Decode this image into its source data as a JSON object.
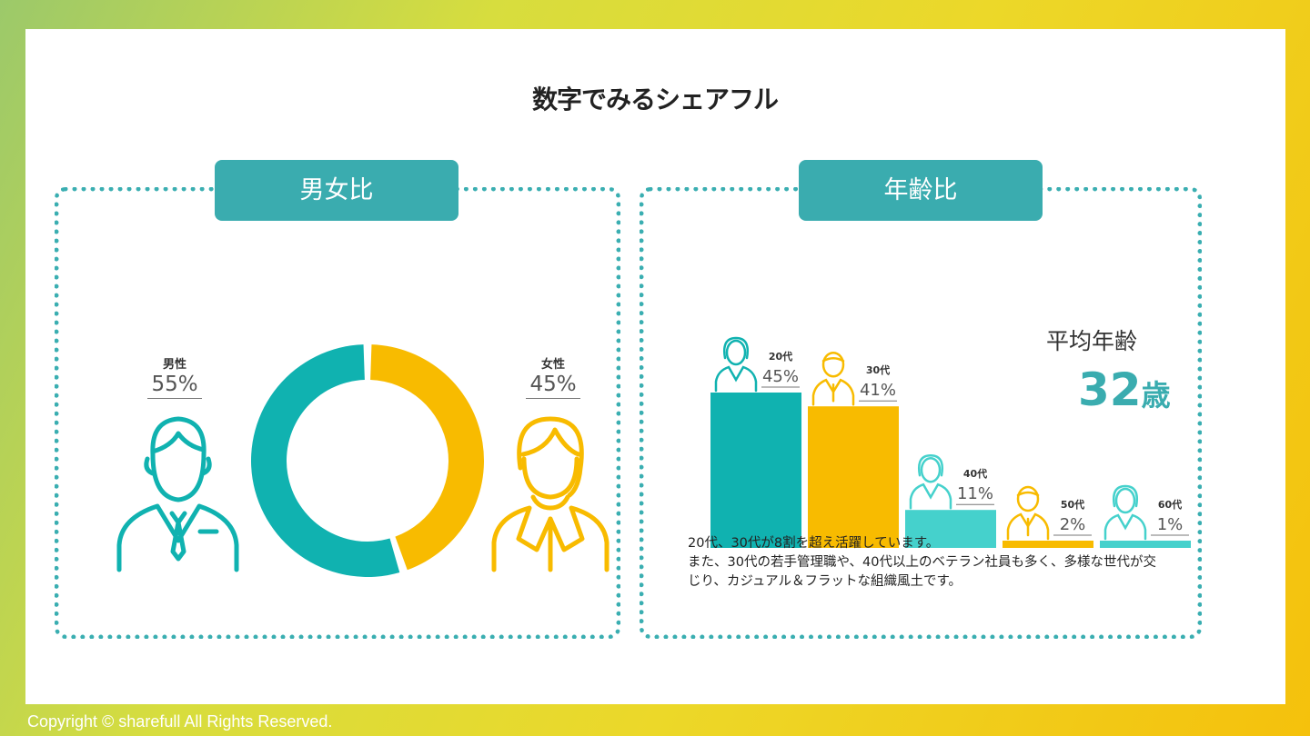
{
  "page": {
    "title": "数字でみるシェアフル",
    "copyright": "Copyright © sharefull All Rights Reserved."
  },
  "gender_panel": {
    "heading": "男女比",
    "male": {
      "label": "男性",
      "percent": "55%"
    },
    "female": {
      "label": "女性",
      "percent": "45%"
    }
  },
  "age_panel": {
    "heading": "年齢比",
    "average_label": "平均年齢",
    "average_value": "32",
    "average_unit": "歳",
    "description": "20代、30代が8割を超え活躍しています。\nまた、30代の若手管理職や、40代以上のベテラン社員も多く、多様な世代が交じり、カジュアル＆フラットな組織風土です。"
  },
  "colors": {
    "teal": "#10b2b0",
    "yellow": "#f8bb00",
    "light_teal": "#45d1cc",
    "accent": "#3aacaf"
  },
  "chart_data": [
    {
      "type": "pie",
      "categories": [
        "男性",
        "女性"
      ],
      "values": [
        55,
        45
      ],
      "colors": [
        "#10b2b0",
        "#f8bb00"
      ],
      "style": "donut"
    },
    {
      "type": "bar",
      "categories": [
        "20代",
        "30代",
        "40代",
        "50代",
        "60代"
      ],
      "values": [
        45,
        41,
        11,
        2,
        1
      ],
      "value_labels": [
        "45%",
        "41%",
        "11%",
        "2%",
        "1%"
      ],
      "colors": [
        "#10b2b0",
        "#f8bb00",
        "#45d1cc",
        "#f8bb00",
        "#45d1cc"
      ],
      "ylim": [
        0,
        45
      ]
    }
  ]
}
